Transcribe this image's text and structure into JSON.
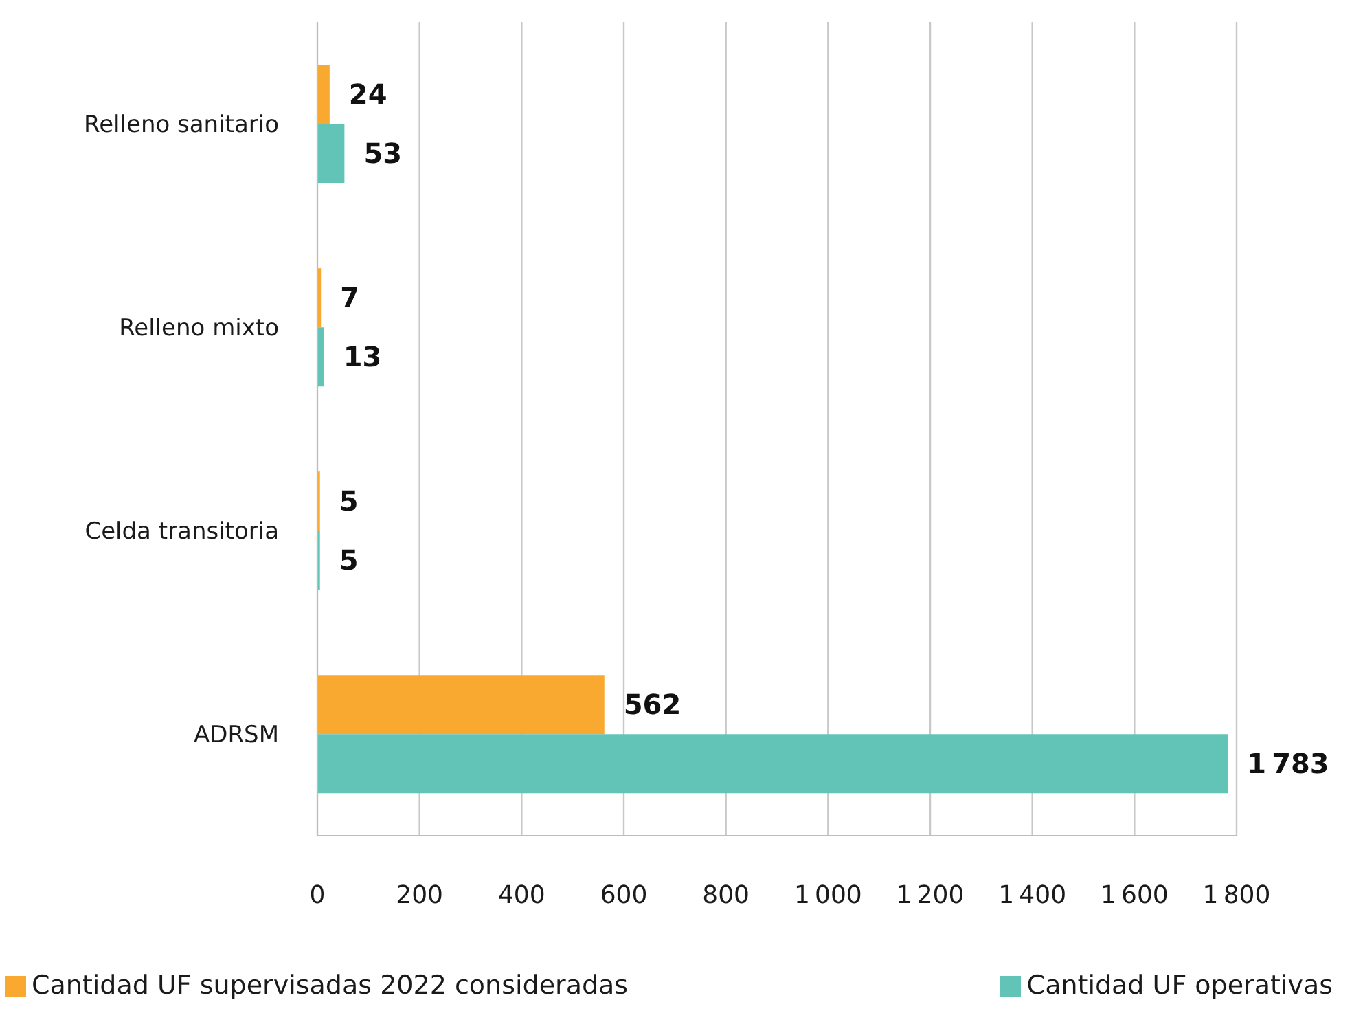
{
  "chart_data": {
    "type": "bar",
    "orientation": "horizontal",
    "categories": [
      "Relleno sanitario",
      "Relleno mixto",
      "Celda transitoria",
      "ADRSM"
    ],
    "series": [
      {
        "name": "Cantidad UF supervisadas 2022 consideradas",
        "color": "#f9a92f",
        "values": [
          24,
          7,
          5,
          562
        ],
        "value_labels": [
          "24",
          "7",
          "5",
          "562"
        ]
      },
      {
        "name": "Cantidad UF operativas",
        "color": "#62c4b7",
        "values": [
          53,
          13,
          5,
          1783
        ],
        "value_labels": [
          "53",
          "13",
          "5",
          "1 783"
        ]
      }
    ],
    "xlim": [
      0,
      1800
    ],
    "xticks": [
      0,
      200,
      400,
      600,
      800,
      {
        "value": 1000,
        "label": "1 000"
      },
      {
        "value": 1200,
        "label": "1 200"
      },
      {
        "value": 1400,
        "label": "1 400"
      },
      {
        "value": 1600,
        "label": "1 600"
      },
      {
        "value": 1800,
        "label": "1 800"
      }
    ],
    "grid": "x",
    "legend": "bottom"
  }
}
